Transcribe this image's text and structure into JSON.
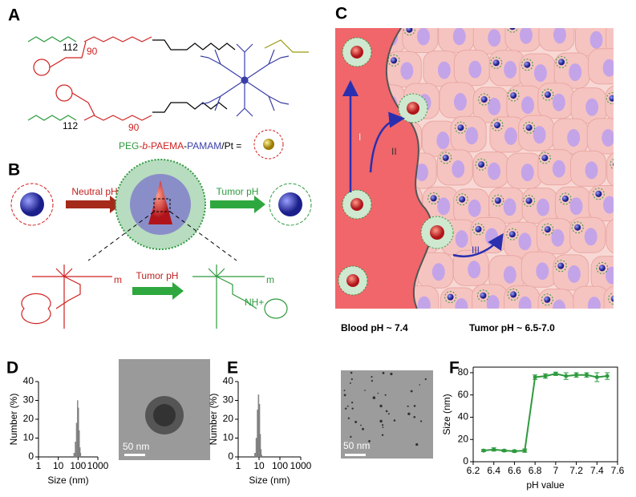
{
  "panels": {
    "A": {
      "label": "A",
      "formula_parts": [
        "PEG",
        "-b-",
        "PAEMA",
        "-",
        "PAMAM",
        "/Pt ="
      ],
      "subscripts": [
        "112",
        "90",
        "112",
        "90"
      ]
    },
    "B": {
      "label": "B",
      "arrow_left": "Neutral pH",
      "arrow_right": "Tumor pH",
      "arrow_bottom": "Tumor pH",
      "repeat": [
        "m",
        "m"
      ],
      "amine": "NH+"
    },
    "C": {
      "label": "C",
      "routes": [
        "I",
        "II",
        "III"
      ],
      "blood": "Blood pH ~ 7.4",
      "tumor": "Tumor pH ~ 6.5-7.0"
    },
    "D": {
      "label": "D",
      "scale_bar": "50 nm"
    },
    "E": {
      "label": "E",
      "scale_bar": "50 nm"
    },
    "F": {
      "label": "F"
    }
  },
  "chart_data": [
    {
      "type": "histogram",
      "xlabel": "Size (nm)",
      "ylabel": "Number (%)",
      "log_x": true,
      "bins": [
        60,
        70,
        80,
        90,
        100,
        110,
        120,
        130,
        140
      ],
      "counts": [
        2,
        8,
        18,
        30,
        26,
        14,
        5,
        2
      ],
      "color": "#8c8c8c",
      "xlim": [
        1,
        1000
      ],
      "xticks": [
        1,
        10,
        100,
        1000
      ],
      "ylim": [
        0,
        40
      ],
      "yticks": [
        0,
        10,
        20,
        30,
        40
      ]
    },
    {
      "type": "histogram",
      "xlabel": "Size (nm)",
      "ylabel": "Number (%)",
      "log_x": true,
      "bins": [
        6,
        7,
        8,
        9,
        10,
        11,
        12,
        13,
        14
      ],
      "counts": [
        2,
        10,
        25,
        33,
        28,
        12,
        4,
        1
      ],
      "color": "#8c8c8c",
      "xlim": [
        1,
        1000
      ],
      "xticks": [
        1,
        10,
        100,
        1000
      ],
      "ylim": [
        0,
        40
      ],
      "yticks": [
        0,
        10,
        20,
        30,
        40
      ]
    },
    {
      "type": "line",
      "xlabel": "pH value",
      "ylabel": "Size (nm)",
      "x": [
        6.3,
        6.4,
        6.5,
        6.6,
        6.7,
        6.8,
        6.9,
        7.0,
        7.1,
        7.2,
        7.3,
        7.4,
        7.5
      ],
      "series": [
        {
          "color": "#2e9a3e",
          "values": [
            10,
            11,
            10,
            9.5,
            10,
            76,
            77,
            79,
            77,
            78,
            78,
            76,
            77
          ],
          "errors": [
            1,
            1.5,
            1,
            1,
            1.5,
            2,
            2,
            1.5,
            3,
            2,
            2,
            4,
            3
          ]
        }
      ],
      "xlim": [
        6.2,
        7.6
      ],
      "xticks": [
        6.2,
        6.4,
        6.6,
        6.8,
        7.0,
        7.2,
        7.4,
        7.6
      ],
      "ylim": [
        0,
        85
      ],
      "yticks": [
        0,
        20,
        40,
        60,
        80
      ]
    }
  ]
}
